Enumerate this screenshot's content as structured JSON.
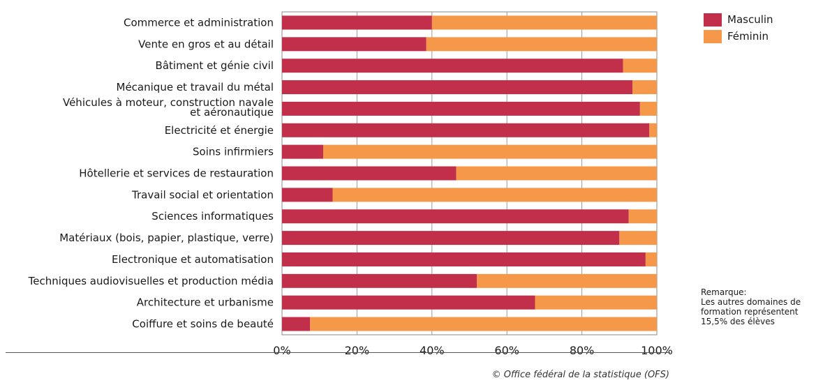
{
  "chart_data": {
    "type": "bar",
    "orientation": "horizontal",
    "stacked": true,
    "categories": [
      [
        "Commerce et administration"
      ],
      [
        "Vente en gros et au détail"
      ],
      [
        "Bâtiment et génie civil"
      ],
      [
        "Mécanique et travail du métal"
      ],
      [
        "Véhicules à moteur, construction navale",
        "et aéronautique"
      ],
      [
        "Electricité et énergie"
      ],
      [
        "Soins infirmiers"
      ],
      [
        "Hôtellerie et services de restauration"
      ],
      [
        "Travail social et orientation"
      ],
      [
        "Sciences informatiques"
      ],
      [
        "Matériaux (bois, papier, plastique, verre)"
      ],
      [
        "Electronique et automatisation"
      ],
      [
        "Techniques audiovisuelles et production média"
      ],
      [
        "Architecture et urbanisme"
      ],
      [
        "Coiffure et soins de beauté"
      ]
    ],
    "series": [
      {
        "name": "Masculin",
        "color": "#c12f4a",
        "values": [
          40,
          38.5,
          91,
          93.5,
          95.5,
          98,
          11,
          46.5,
          13.5,
          92.5,
          90,
          97,
          52,
          67.5,
          7.5
        ]
      },
      {
        "name": "Féminin",
        "color": "#f5984a",
        "values": [
          60,
          61.5,
          9,
          6.5,
          4.5,
          2,
          89,
          53.5,
          86.5,
          7.5,
          10,
          3,
          48,
          32.5,
          92.5
        ]
      }
    ],
    "xlim": [
      0,
      100
    ],
    "xticks": [
      "0%",
      "20%",
      "40%",
      "60%",
      "80%",
      "100%"
    ],
    "grid": true,
    "legend_position": "top-right"
  },
  "legend": {
    "items": [
      {
        "label": "Masculin",
        "color": "#c12f4a"
      },
      {
        "label": "Féminin",
        "color": "#f5984a"
      }
    ]
  },
  "note": {
    "lines": [
      "Remarque:",
      "Les autres domaines de",
      "formation représentent",
      "15,5% des élèves"
    ]
  },
  "source": "© Office fédéral de la statistique (OFS)"
}
